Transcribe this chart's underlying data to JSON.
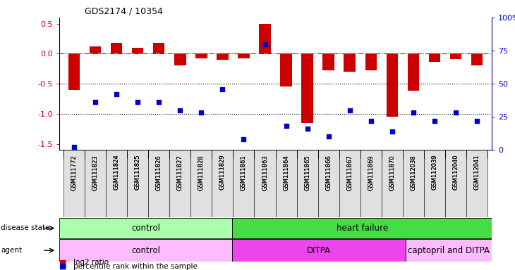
{
  "title": "GDS2174 / 10354",
  "samples": [
    "GSM111772",
    "GSM111823",
    "GSM111824",
    "GSM111825",
    "GSM111826",
    "GSM111827",
    "GSM111828",
    "GSM111829",
    "GSM111861",
    "GSM111863",
    "GSM111864",
    "GSM111865",
    "GSM111866",
    "GSM111867",
    "GSM111869",
    "GSM111870",
    "GSM112038",
    "GSM112039",
    "GSM112040",
    "GSM112041"
  ],
  "log2_ratio": [
    -0.6,
    0.12,
    0.18,
    0.1,
    0.18,
    -0.2,
    -0.08,
    -0.1,
    -0.08,
    0.5,
    -0.55,
    -1.15,
    -0.28,
    -0.3,
    -0.28,
    -1.05,
    -0.62,
    -0.14,
    -0.09,
    -0.2
  ],
  "percentile": [
    2,
    36,
    42,
    36,
    36,
    30,
    28,
    46,
    8,
    80,
    18,
    16,
    10,
    30,
    22,
    14,
    28,
    22,
    28,
    22
  ],
  "disease_state_groups": [
    {
      "label": "control",
      "start": 0,
      "end": 7,
      "color": "#aaffaa"
    },
    {
      "label": "heart failure",
      "start": 8,
      "end": 19,
      "color": "#44dd44"
    }
  ],
  "agent_groups": [
    {
      "label": "control",
      "start": 0,
      "end": 7,
      "color": "#ffbbff"
    },
    {
      "label": "DITPA",
      "start": 8,
      "end": 15,
      "color": "#ee44ee"
    },
    {
      "label": "captopril and DITPA",
      "start": 16,
      "end": 19,
      "color": "#ffbbff"
    }
  ],
  "ylim_left": [
    -1.6,
    0.6
  ],
  "ylim_right": [
    0,
    100
  ],
  "yticks_left": [
    -1.5,
    -1.0,
    -0.5,
    0.0,
    0.5
  ],
  "yticks_right": [
    0,
    25,
    50,
    75,
    100
  ],
  "hline_vals": [
    -1.0,
    -0.5
  ],
  "bar_color": "#cc0000",
  "dot_color": "#0000cc",
  "bar_width": 0.55
}
